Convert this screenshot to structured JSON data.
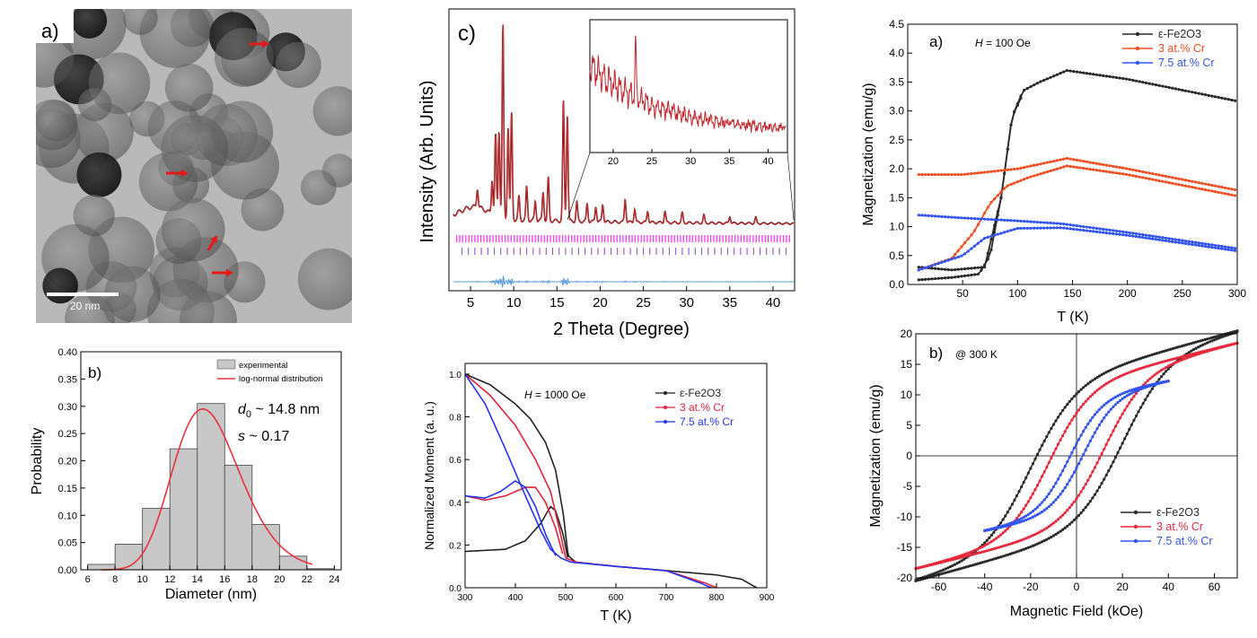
{
  "tem": {
    "label": "a)",
    "scale_bar": "20 nm",
    "arrow_color": "#e8181a"
  },
  "chart_data": [
    {
      "id": "histogram",
      "type": "bar",
      "panel_label": "b)",
      "xlabel": "Diameter (nm)",
      "ylabel": "Probability",
      "xlim": [
        5.5,
        24.5
      ],
      "ylim": [
        0,
        0.4
      ],
      "xticks": [
        6,
        8,
        10,
        12,
        14,
        16,
        18,
        20,
        22,
        24
      ],
      "yticks": [
        0.0,
        0.05,
        0.1,
        0.15,
        0.2,
        0.25,
        0.3,
        0.35,
        0.4
      ],
      "bin_width": 2,
      "bin_centers": [
        7,
        9,
        11,
        13,
        15,
        17,
        19,
        21,
        23
      ],
      "values": [
        0.01,
        0.047,
        0.113,
        0.222,
        0.305,
        0.192,
        0.083,
        0.025,
        0.002
      ],
      "fit": {
        "name": "log-normal distribution",
        "d0": 14.8,
        "s": 0.17,
        "peak_x": 14.4,
        "amplitude": 0.295
      },
      "legend": [
        "experimental",
        "log-normal distribution"
      ],
      "annotation_d0": "~ 14.8 nm",
      "annotation_s": "~ 0.17",
      "colors": {
        "bar": "#c8c8c8",
        "fit": "#e8323c"
      }
    },
    {
      "id": "xrd",
      "type": "line",
      "panel_label": "c)",
      "xlabel": "2 Theta (Degree)",
      "ylabel": "Intensity (Arb. Units)",
      "xlim": [
        2.5,
        42.5
      ],
      "xticks": [
        5,
        10,
        15,
        20,
        25,
        30,
        35,
        40
      ],
      "peaks": [
        {
          "x": 5.8,
          "h": 0.1
        },
        {
          "x": 7.5,
          "h": 0.18
        },
        {
          "x": 7.9,
          "h": 0.42
        },
        {
          "x": 8.3,
          "h": 0.45
        },
        {
          "x": 8.75,
          "h": 1.0
        },
        {
          "x": 9.35,
          "h": 0.48
        },
        {
          "x": 9.75,
          "h": 0.55
        },
        {
          "x": 10.6,
          "h": 0.12
        },
        {
          "x": 11.5,
          "h": 0.17
        },
        {
          "x": 12.5,
          "h": 0.1
        },
        {
          "x": 13.4,
          "h": 0.15
        },
        {
          "x": 14.0,
          "h": 0.22
        },
        {
          "x": 15.75,
          "h": 0.62
        },
        {
          "x": 16.2,
          "h": 0.55
        },
        {
          "x": 17.3,
          "h": 0.1
        },
        {
          "x": 18.5,
          "h": 0.09
        },
        {
          "x": 19.5,
          "h": 0.08
        },
        {
          "x": 20.3,
          "h": 0.09
        },
        {
          "x": 22.9,
          "h": 0.12
        },
        {
          "x": 24.0,
          "h": 0.07
        },
        {
          "x": 25.5,
          "h": 0.06
        },
        {
          "x": 27.5,
          "h": 0.06
        },
        {
          "x": 29.5,
          "h": 0.05
        },
        {
          "x": 32.0,
          "h": 0.04
        },
        {
          "x": 35.0,
          "h": 0.035
        },
        {
          "x": 38.0,
          "h": 0.03
        }
      ],
      "inset_xlim": [
        17,
        42.5
      ],
      "inset_xticks": [
        20,
        25,
        30,
        35,
        40
      ],
      "colors": {
        "observed": "#5a1010",
        "calc": "#e8343a",
        "ticks1": "#ff3cff",
        "ticks2": "#8844cc",
        "diff": "#5b9bd5"
      }
    },
    {
      "id": "moment",
      "type": "line",
      "xlabel": "T (K)",
      "ylabel": "Normalized Moment (a. u.)",
      "xlim": [
        300,
        900
      ],
      "ylim": [
        0,
        1.05
      ],
      "xticks": [
        300,
        400,
        500,
        600,
        700,
        800,
        900
      ],
      "yticks": [
        0.0,
        0.2,
        0.4,
        0.6,
        0.8,
        1.0
      ],
      "field_label": "= 1000 Oe",
      "series": [
        {
          "name": "ε-Fe2O3",
          "color": "#222222",
          "fc": {
            "x": [
              300,
              350,
              400,
              430,
              460,
              480,
              495,
              505,
              520,
              600,
              700,
              800,
              850,
              880
            ],
            "y": [
              1.0,
              0.95,
              0.86,
              0.79,
              0.68,
              0.55,
              0.35,
              0.15,
              0.12,
              0.1,
              0.08,
              0.06,
              0.04,
              0.0
            ]
          },
          "zfc": {
            "x": [
              300,
              380,
              420,
              450,
              470,
              480,
              495,
              505
            ],
            "y": [
              0.17,
              0.18,
              0.22,
              0.3,
              0.38,
              0.36,
              0.25,
              0.13
            ]
          }
        },
        {
          "name": "3 at.% Cr",
          "color": "#e0223a",
          "fc": {
            "x": [
              300,
              350,
              400,
              440,
              470,
              490,
              500,
              520,
              600,
              700,
              780,
              800
            ],
            "y": [
              1.0,
              0.9,
              0.76,
              0.6,
              0.45,
              0.25,
              0.14,
              0.12,
              0.1,
              0.08,
              0.02,
              0.0
            ]
          },
          "zfc": {
            "x": [
              300,
              340,
              380,
              420,
              440,
              460,
              480,
              495
            ],
            "y": [
              0.43,
              0.41,
              0.43,
              0.47,
              0.47,
              0.4,
              0.28,
              0.15
            ]
          }
        },
        {
          "name": "7.5 at.% Cr",
          "color": "#2233ee",
          "fc": {
            "x": [
              300,
              340,
              380,
              420,
              450,
              470,
              490,
              510,
              600,
              700,
              770,
              790
            ],
            "y": [
              1.0,
              0.86,
              0.65,
              0.43,
              0.27,
              0.18,
              0.14,
              0.12,
              0.1,
              0.08,
              0.02,
              0.0
            ]
          },
          "zfc": {
            "x": [
              300,
              340,
              370,
              400,
              420,
              440,
              460,
              480
            ],
            "y": [
              0.43,
              0.42,
              0.45,
              0.5,
              0.47,
              0.38,
              0.25,
              0.15
            ]
          }
        }
      ]
    },
    {
      "id": "mt",
      "type": "line",
      "panel_label": "a)",
      "xlabel": "T (K)",
      "ylabel": "Magnetization (emu/g)",
      "xlim": [
        0,
        300
      ],
      "ylim": [
        0,
        4.5
      ],
      "xticks": [
        50,
        100,
        150,
        200,
        250,
        300
      ],
      "yticks": [
        0.0,
        0.5,
        1.0,
        1.5,
        2.0,
        2.5,
        3.0,
        3.5,
        4.0,
        4.5
      ],
      "field_label": "= 100 Oe",
      "series": [
        {
          "name": "ε-Fe2O3",
          "color": "#2a2a2a",
          "fc": {
            "x": [
              10,
              40,
              70,
              85,
              95,
              105,
              120,
              145,
              200,
              300
            ],
            "y": [
              0.3,
              0.25,
              0.3,
              1.5,
              2.9,
              3.35,
              3.5,
              3.7,
              3.55,
              3.17
            ]
          },
          "zfc": {
            "x": [
              10,
              40,
              65,
              75,
              85,
              95,
              105
            ],
            "y": [
              0.08,
              0.12,
              0.18,
              0.5,
              1.5,
              2.9,
              3.3
            ]
          }
        },
        {
          "name": "3 at.% Cr",
          "color": "#f04e23",
          "fc": {
            "x": [
              10,
              50,
              100,
              145,
              200,
              300
            ],
            "y": [
              1.9,
              1.9,
              2.0,
              2.18,
              2.0,
              1.63
            ]
          },
          "zfc": {
            "x": [
              10,
              40,
              60,
              75,
              90,
              110,
              145,
              200,
              300
            ],
            "y": [
              0.25,
              0.45,
              0.9,
              1.4,
              1.7,
              1.85,
              2.05,
              1.9,
              1.53
            ]
          }
        },
        {
          "name": "7.5 at.% Cr",
          "color": "#3355ee",
          "fc": {
            "x": [
              10,
              50,
              100,
              140,
              200,
              300
            ],
            "y": [
              1.2,
              1.15,
              1.1,
              1.05,
              0.9,
              0.62
            ]
          },
          "zfc": {
            "x": [
              10,
              50,
              70,
              100,
              140,
              200,
              300
            ],
            "y": [
              0.25,
              0.5,
              0.8,
              0.97,
              0.98,
              0.85,
              0.58
            ]
          }
        }
      ]
    },
    {
      "id": "mh",
      "type": "line",
      "panel_label": "b)",
      "xlabel": "Magnetic Field (kOe)",
      "ylabel": "Magnetization (emu/g)",
      "xlim": [
        -70,
        70
      ],
      "ylim": [
        -20,
        20
      ],
      "xticks": [
        -60,
        -40,
        -20,
        0,
        20,
        40,
        60
      ],
      "yticks": [
        -20,
        -15,
        -10,
        -5,
        0,
        5,
        10,
        15,
        20
      ],
      "temp_label": "@ 300 K",
      "series": [
        {
          "name": "ε-Fe2O3",
          "color": "#2a2a2a",
          "ms": 20.5,
          "mr": 8.5,
          "hc": 20,
          "w": 20,
          "xr": 70
        },
        {
          "name": "3 at.% Cr",
          "color": "#e8293d",
          "ms": 18.5,
          "mr": 8.0,
          "hc": 12,
          "w": 18,
          "xr": 70
        },
        {
          "name": "7.5 at.% Cr",
          "color": "#3355ee",
          "ms": 14.5,
          "mr": 3.0,
          "hc": 3,
          "w": 14,
          "xr": 40
        }
      ]
    }
  ]
}
